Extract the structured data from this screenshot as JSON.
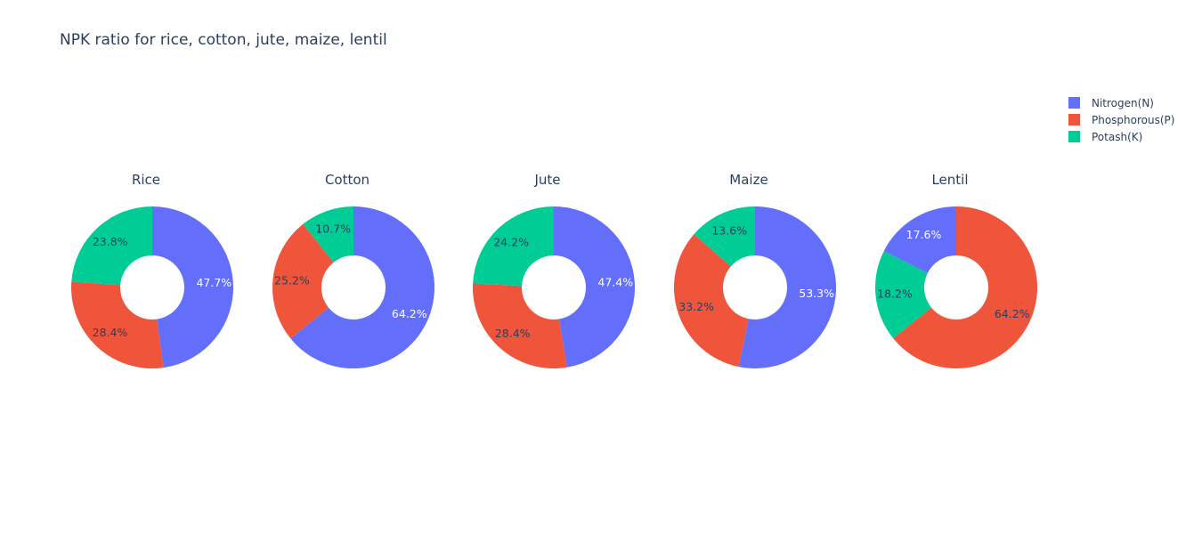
{
  "title": "NPK ratio for rice, cotton, jute, maize, lentil",
  "legend": {
    "placement": "top-right",
    "items": [
      {
        "label": "Nitrogen(N)",
        "color": "#636efa"
      },
      {
        "label": "Phosphorous(P)",
        "color": "#ef553b"
      },
      {
        "label": "Potash(K)",
        "color": "#00cc96"
      }
    ]
  },
  "chart_data": {
    "type": "pie",
    "hole": true,
    "title": "NPK ratio for rice, cotton, jute, maize, lentil",
    "labels": [
      "Nitrogen(N)",
      "Phosphorous(P)",
      "Potash(K)"
    ],
    "colors": [
      "#636efa",
      "#ef553b",
      "#00cc96"
    ],
    "pies": [
      {
        "name": "Rice",
        "values": [
          47.7,
          28.4,
          23.8
        ],
        "text": [
          "47.7%",
          "28.4%",
          "23.8%"
        ]
      },
      {
        "name": "Cotton",
        "values": [
          64.2,
          25.2,
          10.7
        ],
        "text": [
          "64.2%",
          "25.2%",
          "10.7%"
        ]
      },
      {
        "name": "Jute",
        "values": [
          47.4,
          28.4,
          24.2
        ],
        "text": [
          "47.4%",
          "28.4%",
          "24.2%"
        ]
      },
      {
        "name": "Maize",
        "values": [
          53.3,
          33.2,
          13.6
        ],
        "text": [
          "53.3%",
          "33.2%",
          "13.6%"
        ]
      },
      {
        "name": "Lentil",
        "values": [
          17.6,
          64.2,
          18.2
        ],
        "text": [
          "17.6%",
          "64.2%",
          "18.2%"
        ]
      }
    ]
  }
}
